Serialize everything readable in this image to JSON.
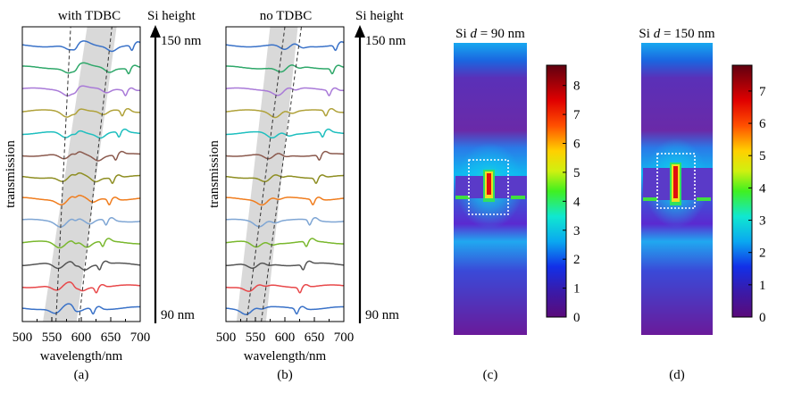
{
  "chart_data": [
    {
      "type": "line",
      "panel_label": "(a)",
      "title": "with TDBC",
      "xlabel": "wavelength/nm",
      "ylabel": "transmission",
      "xlim": [
        500,
        700
      ],
      "xticks": [
        "500",
        "550",
        "600",
        "650",
        "700"
      ],
      "height_axis": {
        "label": "Si height",
        "top": "150 nm",
        "bottom": "90 nm"
      },
      "series_count": 13
    },
    {
      "type": "line",
      "panel_label": "(b)",
      "title": "no TDBC",
      "xlabel": "wavelength/nm",
      "ylabel": "transmission",
      "xlim": [
        500,
        700
      ],
      "xticks": [
        "500",
        "550",
        "600",
        "650",
        "700"
      ],
      "height_axis": {
        "label": "Si height",
        "top": "150 nm",
        "bottom": "90 nm"
      },
      "series_count": 13
    },
    {
      "type": "heatmap",
      "panel_label": "(c)",
      "title_prefix": "Si ",
      "title_var": "d",
      "title_suffix": " = 90 nm",
      "colorbar_ticks": [
        "0",
        "1",
        "2",
        "3",
        "4",
        "5",
        "6",
        "7",
        "8"
      ],
      "colorbar_max": 8.7
    },
    {
      "type": "heatmap",
      "panel_label": "(d)",
      "title_prefix": "Si ",
      "title_var": "d",
      "title_suffix": " = 150 nm",
      "colorbar_ticks": [
        "0",
        "1",
        "2",
        "3",
        "4",
        "5",
        "6",
        "7"
      ],
      "colorbar_max": 7.8
    }
  ],
  "colors": {
    "series": [
      "#3a72c8",
      "#e8484a",
      "#555555",
      "#7ab82e",
      "#7fa6d4",
      "#f07d1e",
      "#8e8e22",
      "#8b5a4e",
      "#1ebfbf",
      "#b0a23a",
      "#a97ad8",
      "#2fa86a",
      "#3a72c8",
      "#e8484a",
      "#555555"
    ],
    "band": "#d9d9d9"
  }
}
